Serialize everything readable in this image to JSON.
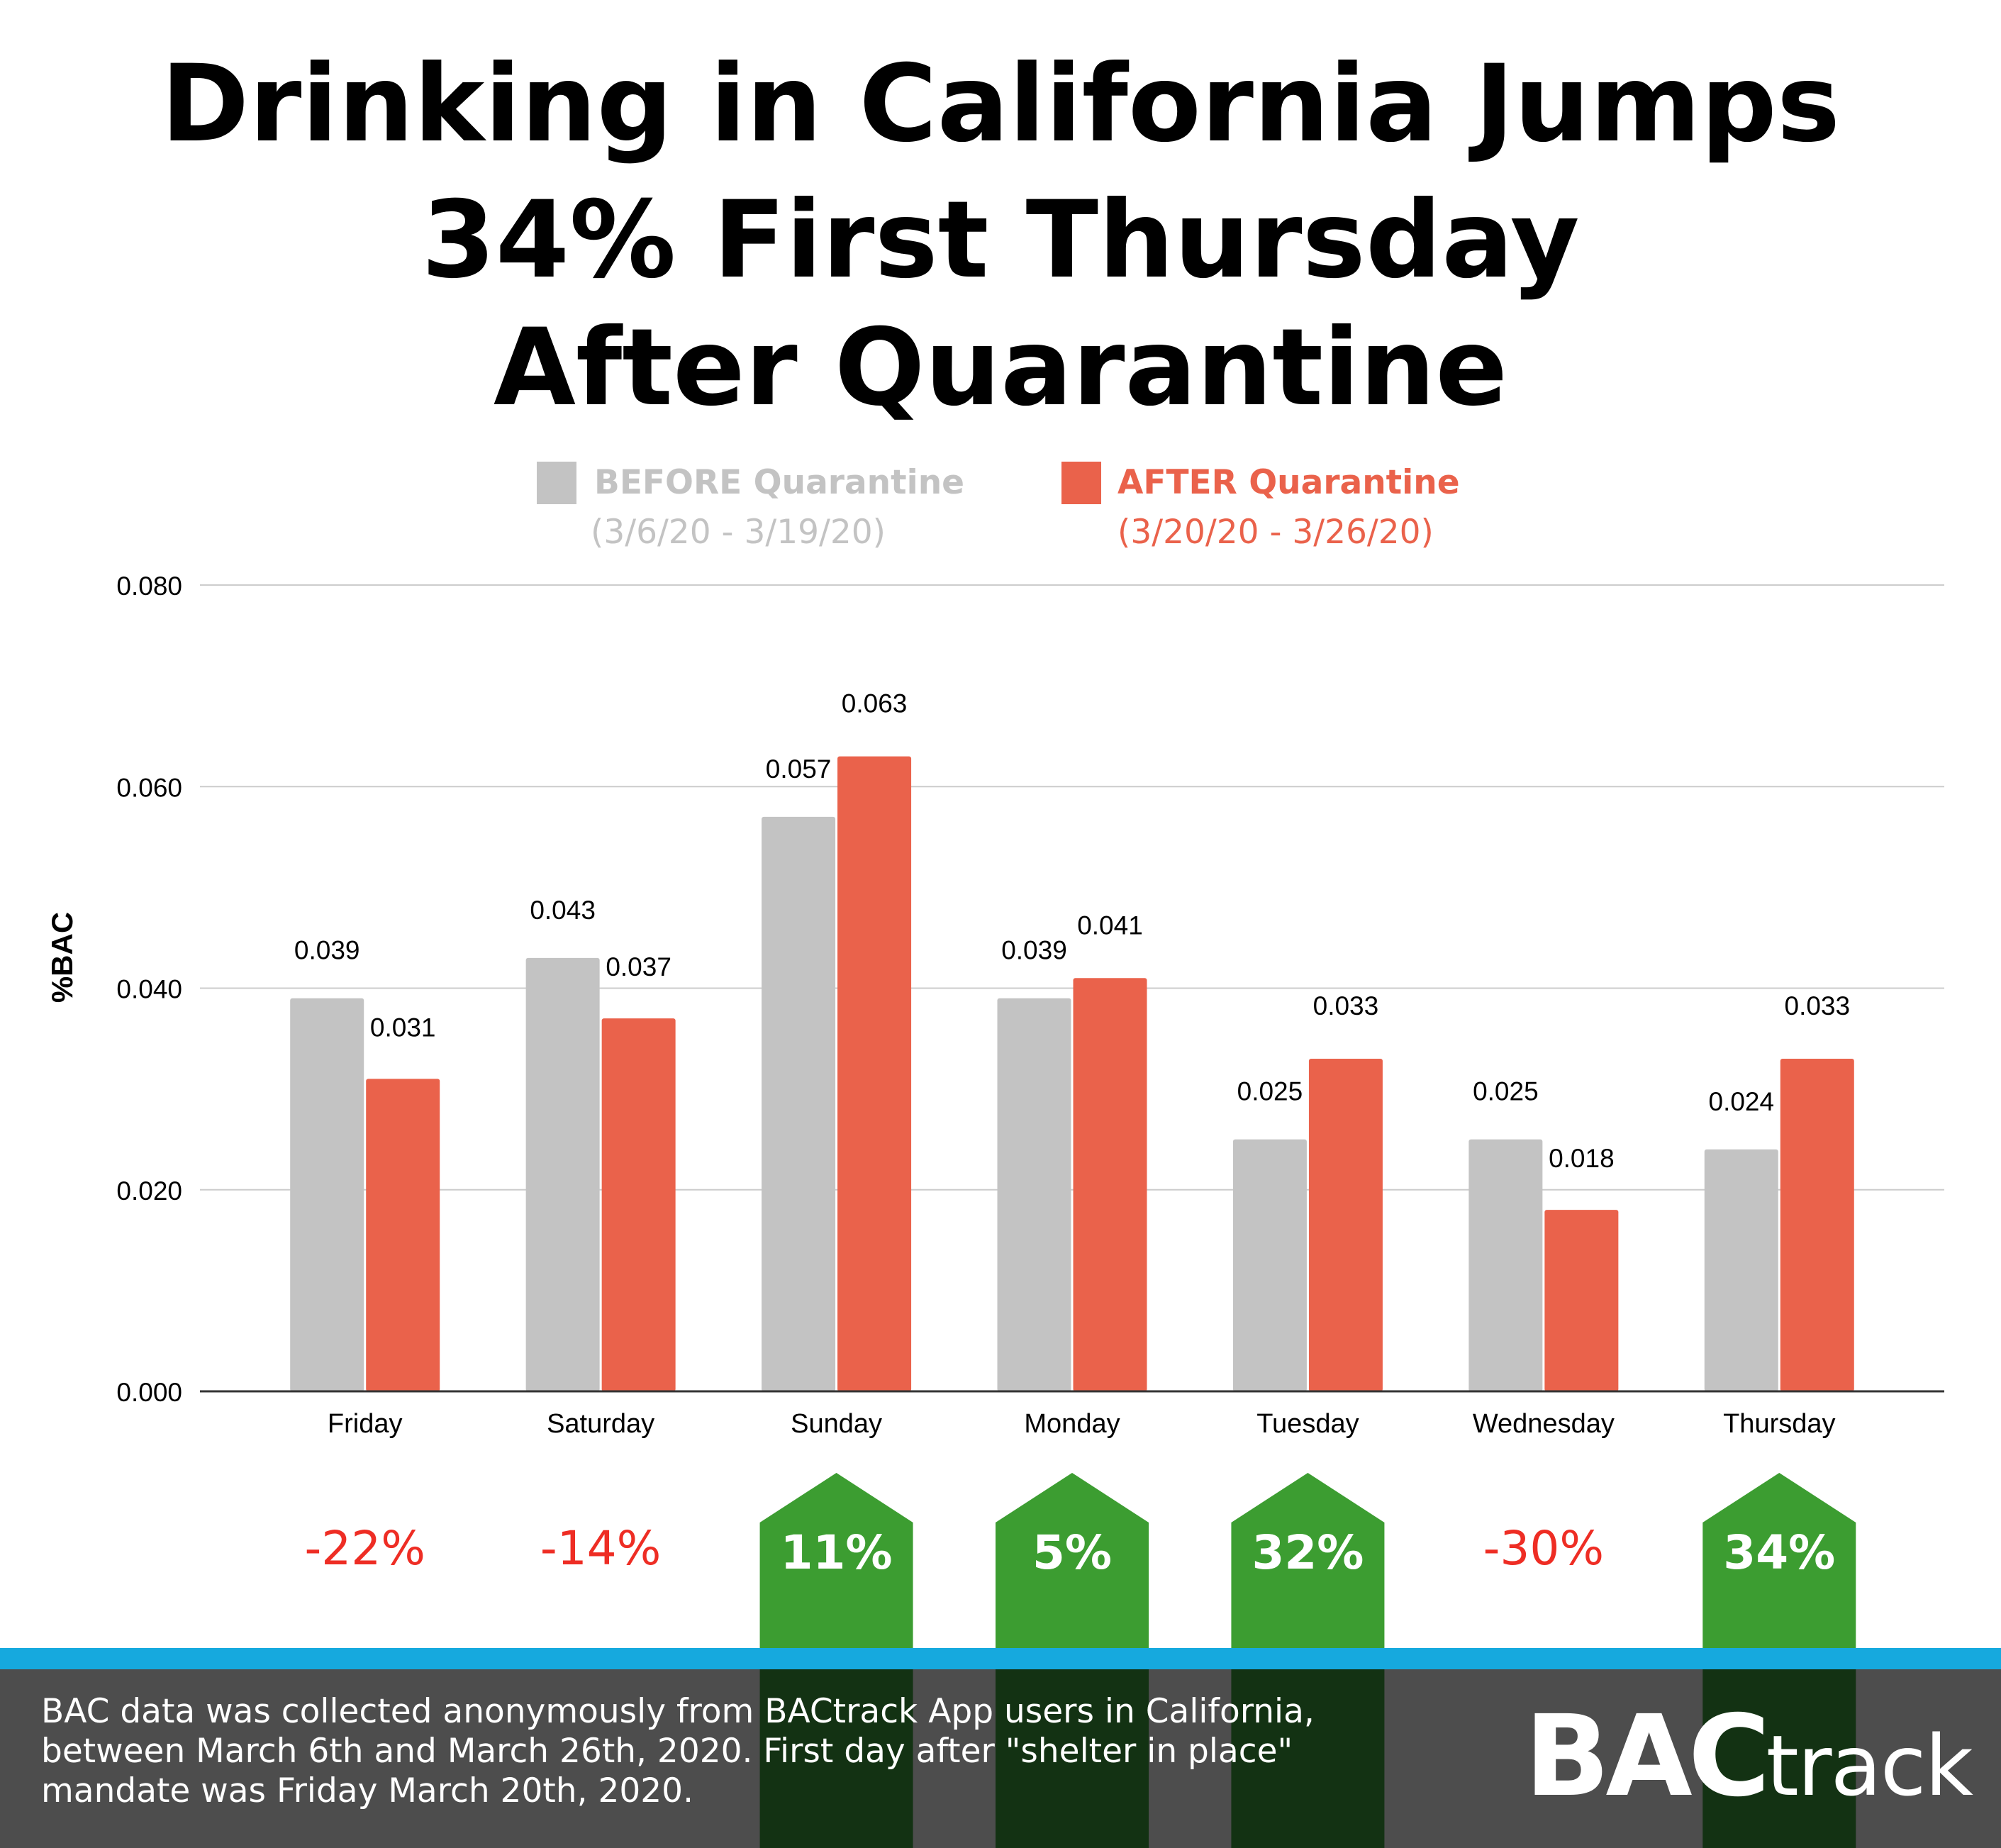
{
  "title_lines": [
    "Drinking in California Jumps",
    "34% First Thursday",
    "After Quarantine"
  ],
  "colors": {
    "before": "#c3c3c3",
    "after": "#ea624b",
    "increase_badge": "#3c9d31",
    "increase_badge_dark": "#133213",
    "decrease_text": "#ee2d24",
    "footer_bg": "#4d4d4d",
    "accent_stripe": "#16a9de",
    "grid": "#cccccc"
  },
  "chart_data": {
    "type": "bar",
    "categories": [
      "Friday",
      "Saturday",
      "Sunday",
      "Monday",
      "Tuesday",
      "Wednesday",
      "Thursday"
    ],
    "series": [
      {
        "name": "BEFORE Quarantine",
        "period": "(3/6/20 - 3/19/20)",
        "values": [
          0.039,
          0.043,
          0.057,
          0.039,
          0.025,
          0.025,
          0.024
        ],
        "labels": [
          "0.039",
          "0.043",
          "0.057",
          "0.039",
          "0.025",
          "0.025",
          "0.024"
        ]
      },
      {
        "name": "AFTER Quarantine",
        "period": "(3/20/20 - 3/26/20)",
        "values": [
          0.031,
          0.037,
          0.063,
          0.041,
          0.033,
          0.018,
          0.033
        ],
        "labels": [
          "0.031",
          "0.037",
          "0.063",
          "0.041",
          "0.033",
          "0.018",
          "0.033"
        ]
      }
    ],
    "ylabel": "%BAC",
    "ylim": [
      0,
      0.08
    ],
    "yticks": [
      "0.000",
      "0.020",
      "0.040",
      "0.060",
      "0.080"
    ],
    "grid": true,
    "legend_position": "top",
    "changes": [
      {
        "label": "-22%",
        "direction": "down"
      },
      {
        "label": "-14%",
        "direction": "down"
      },
      {
        "label": "11%",
        "direction": "up"
      },
      {
        "label": "5%",
        "direction": "up"
      },
      {
        "label": "32%",
        "direction": "up"
      },
      {
        "label": "-30%",
        "direction": "down"
      },
      {
        "label": "34%",
        "direction": "up"
      }
    ]
  },
  "footer": {
    "note": "BAC data was collected anonymously from BACtrack App users in California, between March 6th and March 26th, 2020. First day after \"shelter in place\" mandate was Friday March 20th, 2020.",
    "logo_bold": "BAC",
    "logo_light": "track"
  }
}
